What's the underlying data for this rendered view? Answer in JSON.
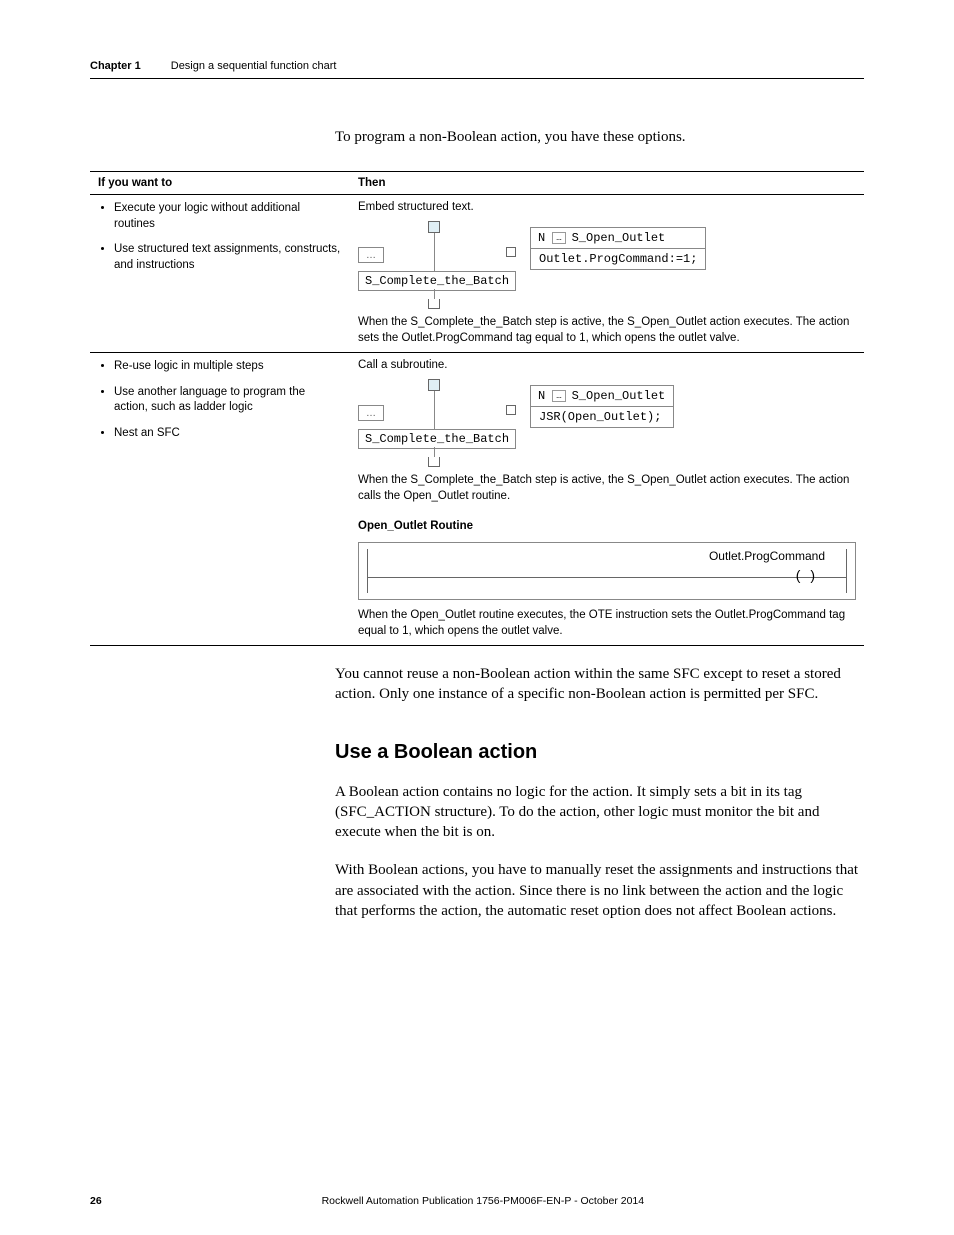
{
  "header": {
    "chapter_label": "Chapter 1",
    "chapter_title": "Design a sequential function chart"
  },
  "intro": "To program a non-Boolean action, you have these options.",
  "table": {
    "headers": {
      "left": "If you want to",
      "right": "Then"
    },
    "row1": {
      "bullets": [
        "Execute your logic without additional routines",
        "Use structured text assignments, constructs, and instructions"
      ],
      "then_intro": "Embed structured text.",
      "sfc": {
        "step_name": "S_Complete_the_Batch",
        "qualifier": "N",
        "action_name": "S_Open_Outlet",
        "action_body": "Outlet.ProgCommand:=1;"
      },
      "caption": "When the S_Complete_the_Batch step is active, the S_Open_Outlet action executes. The action sets the Outlet.ProgCommand tag equal to 1, which opens the outlet valve."
    },
    "row2": {
      "bullets": [
        "Re-use logic in multiple steps",
        "Use another language to program the action, such as ladder logic",
        "Nest an SFC"
      ],
      "then_intro": "Call a subroutine.",
      "sfc": {
        "step_name": "S_Complete_the_Batch",
        "qualifier": "N",
        "action_name": "S_Open_Outlet",
        "action_body": "JSR(Open_Outlet);"
      },
      "caption1": "When the S_Complete_the_Batch step is active, the S_Open_Outlet action executes. The action calls the Open_Outlet routine.",
      "routine_label": "Open_Outlet Routine",
      "ladder_tag": "Outlet.ProgCommand",
      "caption2": "When the Open_Outlet routine executes, the OTE instruction sets the Outlet.ProgCommand tag equal to 1, which opens the outlet valve."
    }
  },
  "after_table_para": "You cannot reuse a non-Boolean action within the same SFC except to reset a stored action. Only one instance of a specific non-Boolean action is permitted per SFC.",
  "section_heading": "Use a Boolean action",
  "section_para1": "A Boolean action contains no logic for the action. It simply sets a bit in its tag (SFC_ACTION structure). To do the action, other logic must monitor the bit and execute when the bit is on.",
  "section_para2": "With Boolean actions, you have to manually reset the assignments and instructions that are associated with the action. Since there is no link between the action and the logic that performs the action, the automatic reset option does not affect Boolean actions.",
  "footer": {
    "page": "26",
    "publication": "Rockwell Automation Publication 1756-PM006F-EN-P - October 2014"
  }
}
